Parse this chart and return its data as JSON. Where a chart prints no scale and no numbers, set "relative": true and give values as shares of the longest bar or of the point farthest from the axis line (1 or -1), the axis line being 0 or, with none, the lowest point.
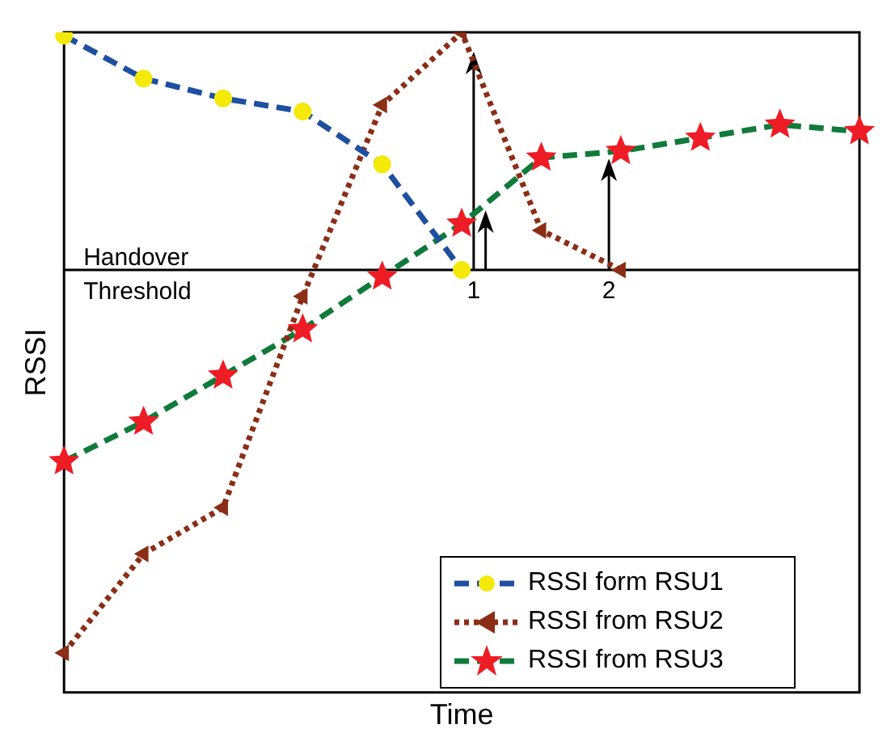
{
  "chart_data": {
    "type": "line",
    "relative": true,
    "xlabel": "Time",
    "ylabel": "RSSI",
    "categories": [
      null,
      null,
      null,
      null,
      null,
      null,
      null,
      null,
      null,
      null,
      null
    ],
    "series": [
      {
        "name": "RSSI form RSU1",
        "color": "#1f4fa0",
        "marker": "circle",
        "line_style": "dashed",
        "values": [
          0.995,
          0.93,
          0.9,
          0.88,
          0.8,
          0.64,
          null,
          null,
          null,
          null,
          null
        ]
      },
      {
        "name": "RSSI from RSU2",
        "color": "#8b2e16",
        "marker": "triangle",
        "line_style": "dotted",
        "values": [
          0.06,
          0.21,
          0.28,
          0.6,
          0.89,
          1,
          0.7,
          0.64,
          null,
          null,
          null
        ]
      },
      {
        "name": "RSSI from RSU3",
        "color": "#107a3a",
        "marker": "star",
        "line_style": "dashed",
        "values": [
          0.35,
          0.41,
          0.48,
          0.55,
          0.63,
          0.71,
          0.81,
          0.82,
          0.84,
          0.86,
          0.85
        ]
      }
    ],
    "ref_lines": [
      {
        "axis": "y",
        "value": 0.64,
        "label": "Handover Threshold",
        "color": "#000000"
      }
    ],
    "annotations": [
      "1",
      "2"
    ],
    "grid": false,
    "legend": "bottom right"
  }
}
